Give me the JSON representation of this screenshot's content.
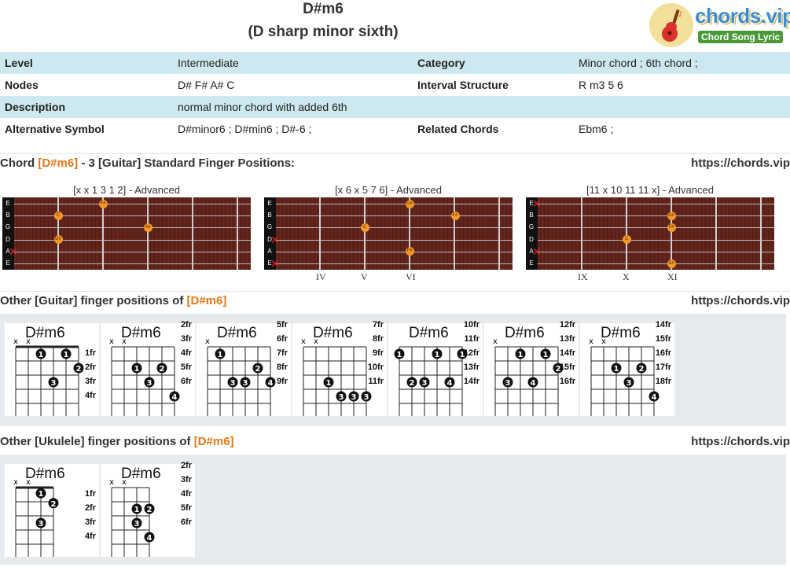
{
  "header": {
    "chord": "D#m6",
    "full_name": "(D sharp minor sixth)",
    "logo_name": "chords.vip",
    "logo_tagline": "Chord Song Lyric"
  },
  "info": [
    {
      "k1": "Level",
      "v1": "Intermediate",
      "k2": "Category",
      "v2": "Minor chord ; 6th chord ;"
    },
    {
      "k1": "Nodes",
      "v1": "D# F# A# C",
      "k2": "Interval Structure",
      "v2": "R m3 5 6"
    },
    {
      "k1": "Description",
      "v1": "normal minor chord with added 6th",
      "k2": "",
      "v2": ""
    },
    {
      "k1": "Alternative Symbol",
      "v1": " D#minor6 ; D#min6 ; D#-6 ;",
      "k2": "Related Chords",
      "v2": " Ebm6 ;"
    }
  ],
  "section_standard": {
    "pre": "Chord ",
    "chord": "[D#m6]",
    "post": " - 3 [Guitar] Standard Finger Positions:"
  },
  "section_guitar": {
    "pre": "Other [Guitar] finger positions of ",
    "chord": "[D#m6]"
  },
  "section_ukulele": {
    "pre": "Other [Ukulele] finger positions of ",
    "chord": "[D#m6]"
  },
  "site_url": "https://chords.vip",
  "standard_positions": [
    {
      "caption": "[x x 1 3 1 2] - Advanced",
      "romans": []
    },
    {
      "caption": "[x 6 x 5 7 6] - Advanced",
      "romans": [
        "IV",
        "V",
        "VI"
      ]
    },
    {
      "caption": "[11 x 10 11 11 x] - Advanced",
      "romans": [
        "IX",
        "X",
        "XI"
      ]
    }
  ],
  "string_labels": [
    "E",
    "B",
    "G",
    "D",
    "A",
    "E"
  ],
  "note_labels": {
    "ds": "D#",
    "fs": "F#",
    "as": "A#",
    "c": "C"
  },
  "guitar_cards": [
    {
      "name": "D#m6",
      "frets": [
        "1fr",
        "2fr",
        "3fr",
        "4fr"
      ]
    },
    {
      "name": "D#m6",
      "frets": [
        "2fr",
        "3fr",
        "4fr",
        "5fr",
        "6fr"
      ]
    },
    {
      "name": "D#m6",
      "frets": [
        "5fr",
        "6fr",
        "7fr",
        "8fr",
        "9fr"
      ]
    },
    {
      "name": "D#m6",
      "frets": [
        "7fr",
        "8fr",
        "9fr",
        "10fr",
        "11fr"
      ]
    },
    {
      "name": "D#m6",
      "frets": [
        "10fr",
        "11fr",
        "12fr",
        "13fr",
        "14fr"
      ]
    },
    {
      "name": "D#m6",
      "frets": [
        "12fr",
        "13fr",
        "14fr",
        "15fr",
        "16fr"
      ]
    },
    {
      "name": "D#m6",
      "frets": [
        "14fr",
        "15fr",
        "16fr",
        "17fr",
        "18fr"
      ]
    }
  ],
  "ukulele_cards": [
    {
      "name": "D#m6",
      "frets": [
        "1fr",
        "2fr",
        "3fr",
        "4fr"
      ]
    },
    {
      "name": "D#m6",
      "frets": [
        "2fr",
        "3fr",
        "4fr",
        "5fr",
        "6fr"
      ]
    }
  ],
  "colors": {
    "accent": "#e07818",
    "row_highlight": "#cde9ef",
    "note_dot": "#f19a2a",
    "mute_mark": "#e02020",
    "fretboard": "#5a1f18",
    "panel": "#e8ebed"
  }
}
